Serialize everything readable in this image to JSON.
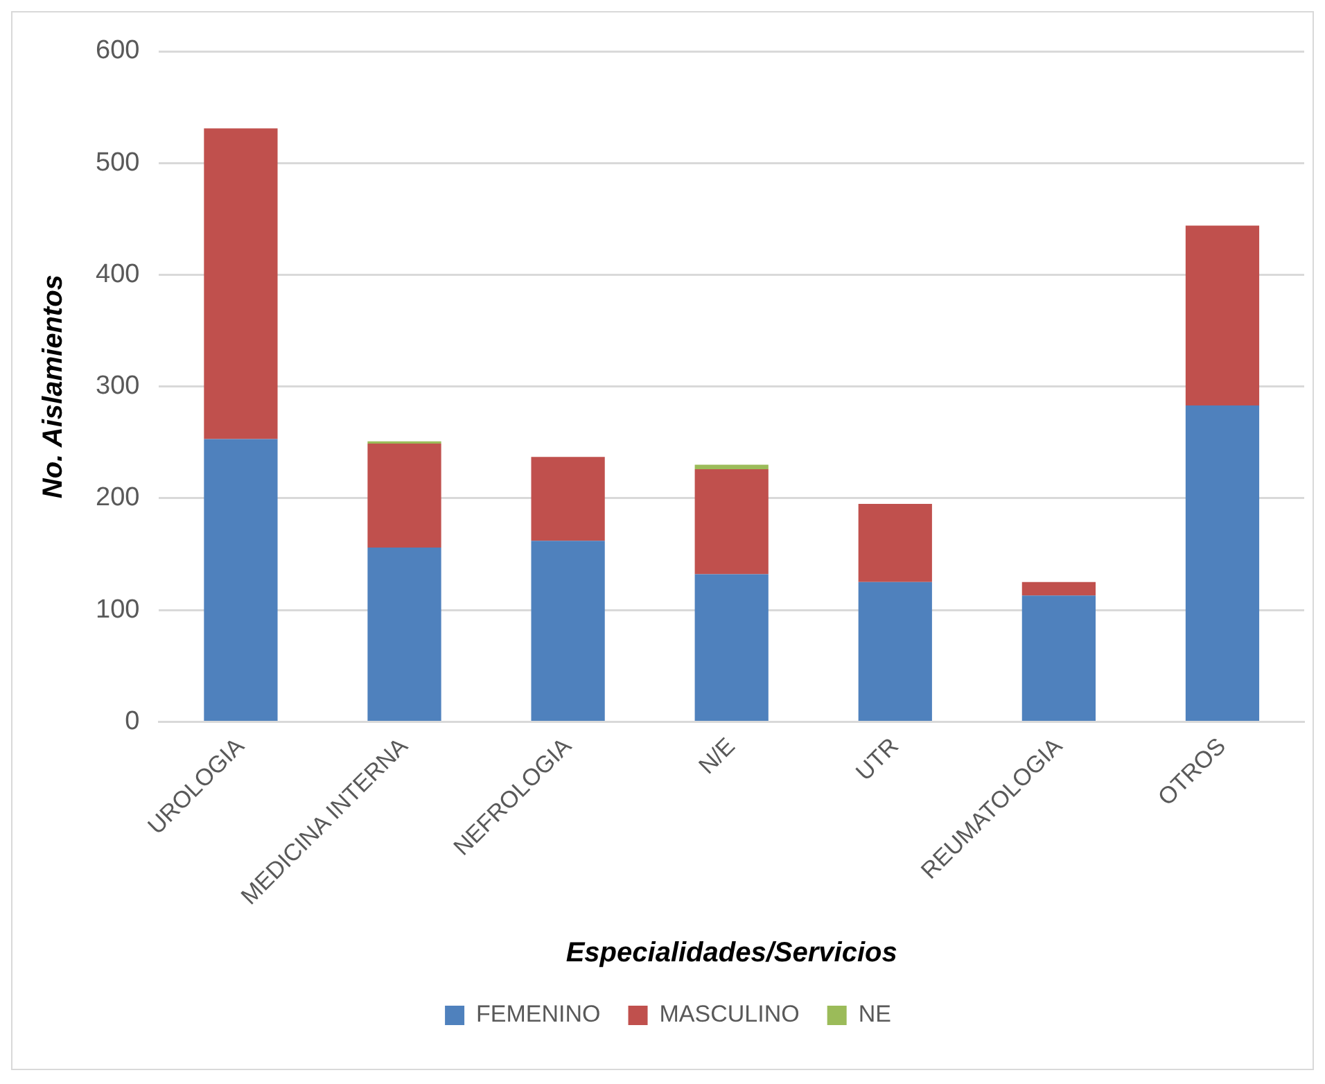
{
  "chart_data": {
    "type": "bar",
    "stacked": true,
    "xlabel": "Especialidades/Servicios",
    "ylabel": "No. Aislamientos",
    "categories": [
      "UROLOGIA",
      "MEDICINA INTERNA",
      "NEFROLOGIA",
      "N/E",
      "UTR",
      "REUMATOLOGIA",
      "OTROS"
    ],
    "series": [
      {
        "name": "FEMENINO",
        "color": "#4f81bd",
        "values": [
          253,
          156,
          162,
          132,
          125,
          113,
          283
        ]
      },
      {
        "name": "MASCULINO",
        "color": "#c0504d",
        "values": [
          278,
          93,
          75,
          94,
          70,
          12,
          161
        ]
      },
      {
        "name": "NE",
        "color": "#9bbb59",
        "values": [
          0,
          2,
          0,
          4,
          0,
          0,
          0
        ]
      }
    ],
    "ylim": [
      0,
      600
    ],
    "yticks": [
      0,
      100,
      200,
      300,
      400,
      500,
      600
    ],
    "grid": "y",
    "legend": "bottom"
  }
}
